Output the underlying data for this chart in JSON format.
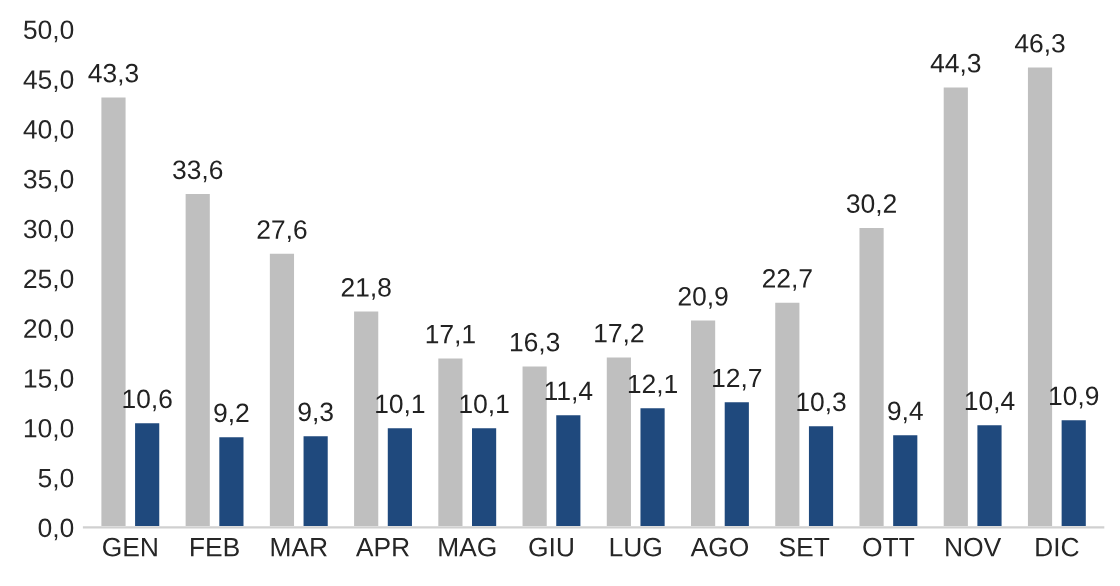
{
  "chart_data": {
    "type": "bar",
    "categories": [
      "GEN",
      "FEB",
      "MAR",
      "APR",
      "MAG",
      "GIU",
      "LUG",
      "AGO",
      "SET",
      "OTT",
      "NOV",
      "DIC"
    ],
    "series": [
      {
        "color": "#bfbfbf",
        "values": [
          43.3,
          33.6,
          27.6,
          21.8,
          17.1,
          16.3,
          17.2,
          20.9,
          22.7,
          30.2,
          44.3,
          46.3
        ]
      },
      {
        "color": "#1f497d",
        "values": [
          10.6,
          9.2,
          9.3,
          10.1,
          10.1,
          11.4,
          12.1,
          12.7,
          10.3,
          9.4,
          10.4,
          10.9
        ]
      }
    ],
    "ylim": [
      0,
      50
    ],
    "yticks": [
      {
        "value": 0,
        "label": "0,0"
      },
      {
        "value": 5,
        "label": "5,0"
      },
      {
        "value": 10,
        "label": "10,0"
      },
      {
        "value": 15,
        "label": "15,0"
      },
      {
        "value": 20,
        "label": "20,0"
      },
      {
        "value": 25,
        "label": "25,0"
      },
      {
        "value": 30,
        "label": "30,0"
      },
      {
        "value": 35,
        "label": "35,0"
      },
      {
        "value": 40,
        "label": "40,0"
      },
      {
        "value": 45,
        "label": "45,0"
      },
      {
        "value": 50,
        "label": "50,0"
      }
    ],
    "value_labels": [
      [
        "43,3",
        "33,6",
        "27,6",
        "21,8",
        "17,1",
        "16,3",
        "17,2",
        "20,9",
        "22,7",
        "30,2",
        "44,3",
        "46,3"
      ],
      [
        "10,6",
        "9,2",
        "9,3",
        "10,1",
        "10,1",
        "11,4",
        "12,1",
        "12,7",
        "10,3",
        "9,4",
        "10,4",
        "10,9"
      ]
    ],
    "grid": false,
    "legend": false
  }
}
